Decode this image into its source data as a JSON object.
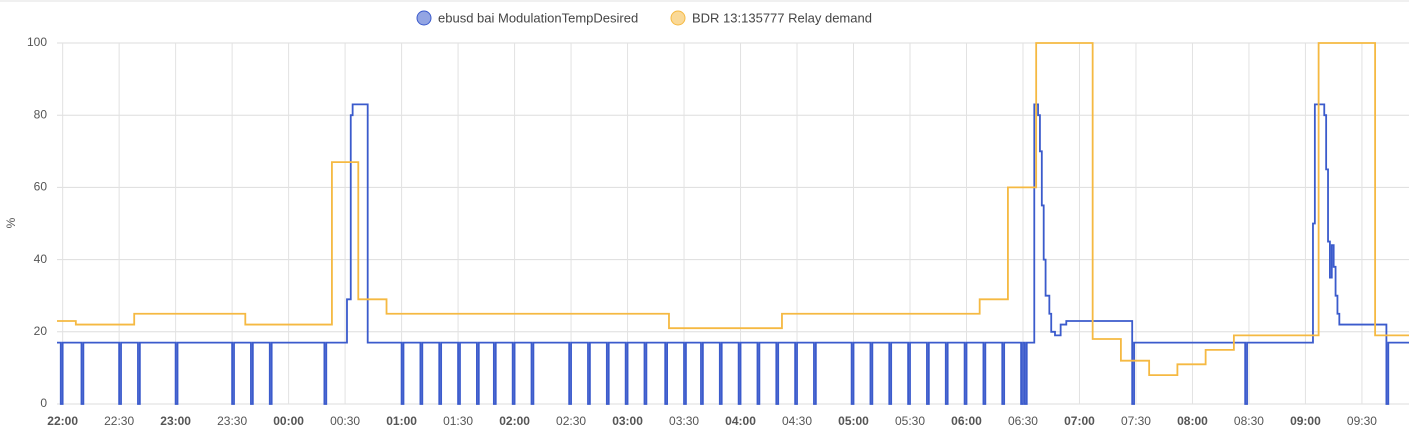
{
  "chart_data": {
    "type": "line",
    "step": true,
    "y_label": "%",
    "xlim": [
      "21:57",
      "09:55"
    ],
    "xticks": [
      "22:00",
      "22:30",
      "23:00",
      "23:30",
      "00:00",
      "00:30",
      "01:00",
      "01:30",
      "02:00",
      "02:30",
      "03:00",
      "03:30",
      "04:00",
      "04:30",
      "05:00",
      "05:30",
      "06:00",
      "06:30",
      "07:00",
      "07:30",
      "08:00",
      "08:30",
      "09:00",
      "09:30"
    ],
    "ylim": [
      0,
      100
    ],
    "yticks": [
      0,
      20,
      40,
      60,
      80,
      100
    ],
    "grid": true,
    "series": [
      {
        "name": "ebusd bai ModulationTempDesired",
        "color": "#3b5bcc",
        "x": [
          "21:57",
          "21:59",
          "22:00",
          "22:10",
          "22:11",
          "22:30",
          "22:31",
          "22:40",
          "22:41",
          "23:00",
          "23:01",
          "23:30",
          "23:31",
          "23:40",
          "23:41",
          "23:50",
          "23:51",
          "00:19",
          "00:20",
          "00:31",
          "00:33",
          "00:34",
          "00:42",
          "01:00",
          "01:01",
          "01:10",
          "01:11",
          "01:20",
          "01:21",
          "01:30",
          "01:31",
          "01:40",
          "01:41",
          "01:49",
          "01:50",
          "01:59",
          "02:00",
          "02:09",
          "02:10",
          "02:29",
          "02:30",
          "02:39",
          "02:40",
          "02:49",
          "02:50",
          "02:59",
          "03:00",
          "03:09",
          "03:10",
          "03:20",
          "03:21",
          "03:30",
          "03:31",
          "03:39",
          "03:40",
          "03:49",
          "03:50",
          "03:59",
          "04:00",
          "04:09",
          "04:10",
          "04:19",
          "04:20",
          "04:29",
          "04:30",
          "04:39",
          "04:40",
          "04:59",
          "05:00",
          "05:09",
          "05:10",
          "05:19",
          "05:20",
          "05:29",
          "05:30",
          "05:39",
          "05:40",
          "05:49",
          "05:50",
          "05:59",
          "06:00",
          "06:09",
          "06:10",
          "06:19",
          "06:20",
          "06:29",
          "06:30",
          "06:31",
          "06:32",
          "06:36",
          "06:38",
          "06:39",
          "06:40",
          "06:41",
          "06:42",
          "06:44",
          "06:45",
          "06:47",
          "06:50",
          "06:53",
          "07:28",
          "07:29",
          "08:28",
          "08:29",
          "09:04",
          "09:05",
          "09:10",
          "09:11",
          "09:12",
          "09:13",
          "09:14",
          "09:15",
          "09:16",
          "09:17",
          "09:18",
          "09:43",
          "09:44",
          "09:55"
        ],
        "values": [
          17,
          0,
          17,
          0,
          17,
          0,
          17,
          0,
          17,
          0,
          17,
          0,
          17,
          0,
          17,
          0,
          17,
          0,
          17,
          29,
          80,
          83,
          17,
          0,
          17,
          0,
          17,
          0,
          17,
          0,
          17,
          0,
          17,
          0,
          17,
          0,
          17,
          0,
          17,
          0,
          17,
          0,
          17,
          0,
          17,
          0,
          17,
          0,
          17,
          0,
          17,
          0,
          17,
          0,
          17,
          0,
          17,
          0,
          17,
          0,
          17,
          0,
          17,
          0,
          17,
          0,
          17,
          0,
          17,
          0,
          17,
          0,
          17,
          0,
          17,
          0,
          17,
          0,
          17,
          0,
          17,
          0,
          17,
          0,
          17,
          0,
          17,
          0,
          17,
          83,
          80,
          70,
          55,
          40,
          30,
          25,
          20,
          19,
          22,
          23,
          0,
          17,
          0,
          17,
          50,
          83,
          80,
          65,
          45,
          35,
          44,
          38,
          30,
          25,
          22,
          0,
          17,
          17
        ]
      },
      {
        "name": "BDR 13:135777 Relay demand",
        "color": "#f5b942",
        "x": [
          "21:57",
          "22:07",
          "22:38",
          "23:37",
          "00:23",
          "00:37",
          "00:52",
          "03:22",
          "04:22",
          "06:07",
          "06:22",
          "06:37",
          "07:07",
          "07:22",
          "07:37",
          "07:52",
          "08:07",
          "08:22",
          "09:07",
          "09:37",
          "09:55"
        ],
        "values": [
          23,
          22,
          25,
          22,
          67,
          29,
          25,
          21,
          25,
          29,
          60,
          100,
          18,
          12,
          8,
          11,
          15,
          19,
          100,
          19,
          19
        ]
      }
    ]
  }
}
